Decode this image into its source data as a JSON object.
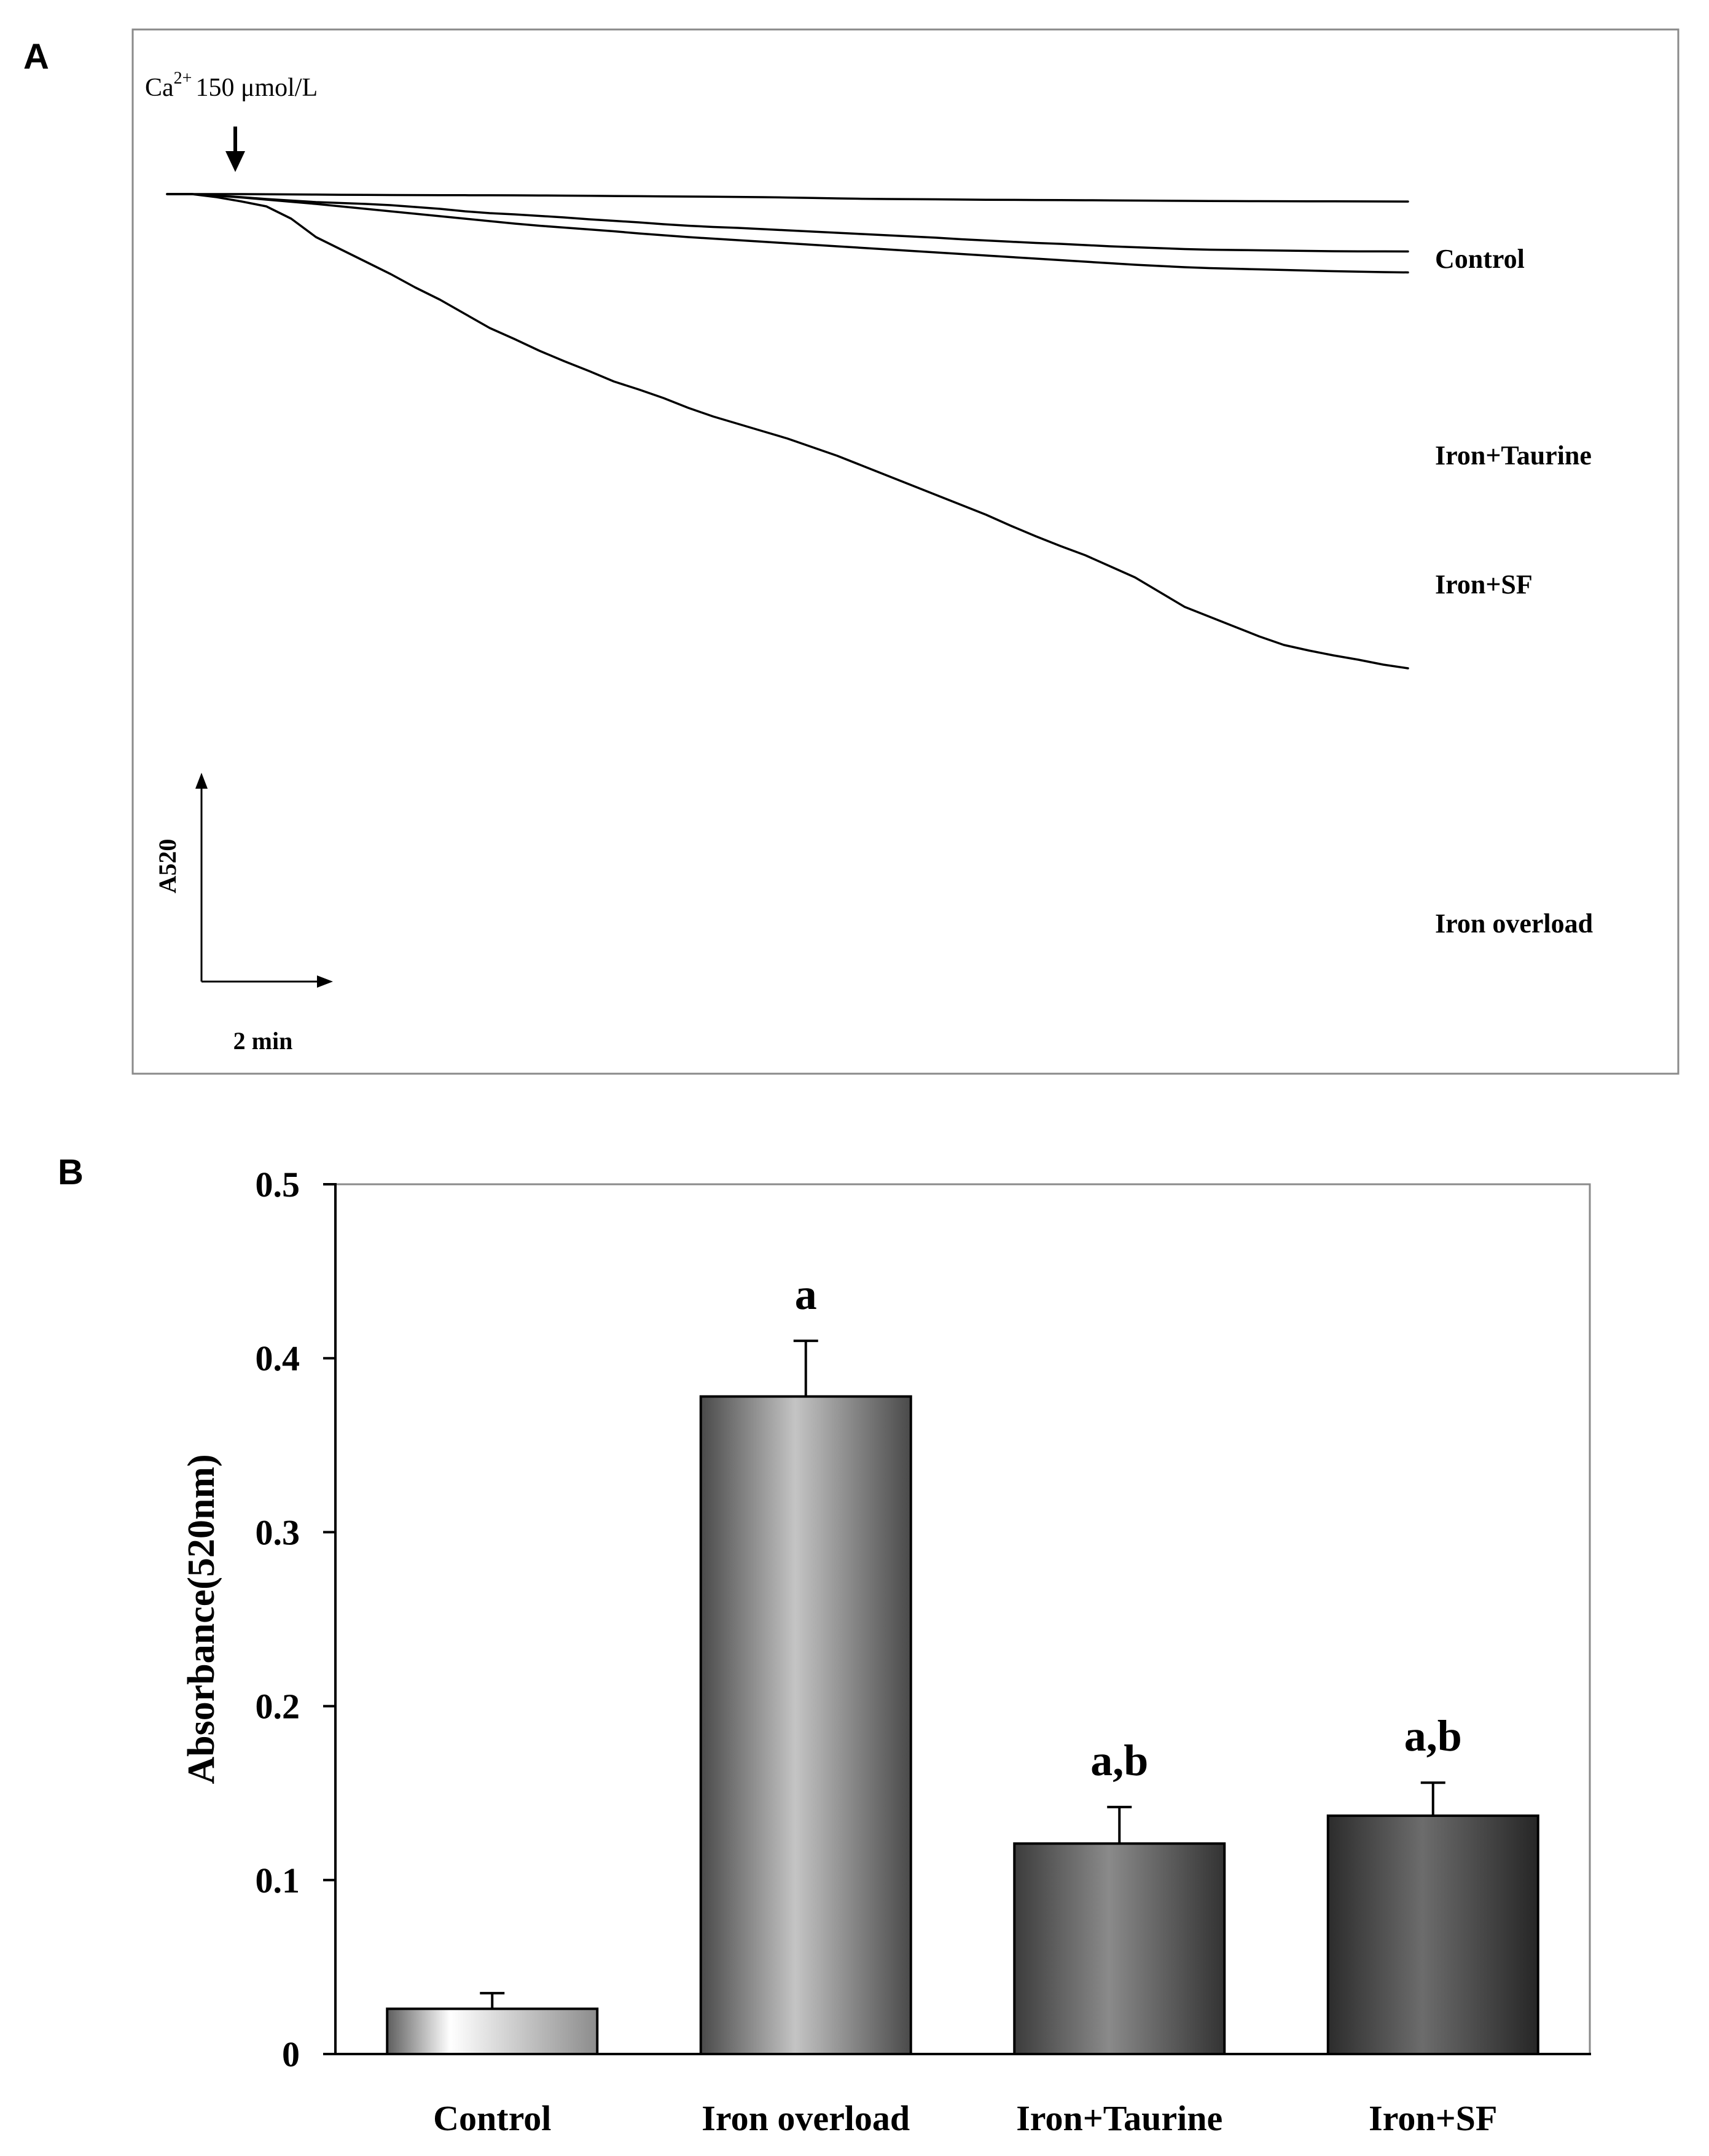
{
  "figure": {
    "panel_a_label": "A",
    "panel_b_label": "B"
  },
  "chart_data": [
    {
      "type": "line",
      "panel": "A",
      "annotation": {
        "ion": "Ca",
        "superscript": "2+",
        "concentration": "150 μmol/L"
      },
      "ylabel": "A520",
      "xlabel": "2 min",
      "x": [
        0,
        0.1,
        0.2,
        0.4,
        0.6,
        0.8,
        1.0,
        1.2,
        1.4,
        1.6,
        1.8,
        2.0,
        2.2,
        2.4,
        2.6,
        2.8,
        3.0,
        3.2,
        3.4,
        3.6,
        3.8,
        4.0,
        4.2,
        4.4,
        4.6,
        4.8,
        5.0,
        5.2,
        5.4,
        5.6,
        5.8,
        6.0,
        6.2,
        6.4,
        6.6,
        6.8,
        7.0,
        7.2,
        7.4,
        7.6,
        7.8,
        8.0,
        8.2,
        8.4,
        8.6,
        8.8,
        9.0,
        9.2,
        9.4,
        9.6,
        9.8,
        10.0
      ],
      "series": [
        {
          "name": "Control",
          "values": [
            0,
            0,
            0,
            0,
            0,
            -0.3,
            -0.5,
            -0.8,
            -1.1,
            -1.3,
            -1.5,
            -1.6,
            -1.7,
            -1.8,
            -1.9,
            -2.0,
            -2.2,
            -2.5,
            -2.8,
            -3.1,
            -3.4,
            -3.7,
            -4.0,
            -4.3,
            -4.6,
            -5.0,
            -5.6,
            -6.3,
            -7.0,
            -7.6,
            -8.0,
            -8.2,
            -8.5,
            -8.9,
            -9.2,
            -9.4,
            -9.6,
            -9.8,
            -10.0,
            -10.2,
            -10.5,
            -10.8,
            -11.0,
            -11.2,
            -11.4,
            -11.5,
            -11.6,
            -11.7,
            -11.8,
            -11.9,
            -12.0,
            -12.1
          ]
        },
        {
          "name": "Iron+Taurine",
          "values": [
            0,
            0,
            0,
            -2.5,
            -5,
            -8,
            -10.5,
            -13,
            -14.5,
            -16,
            -18,
            -21,
            -24,
            -28,
            -31,
            -33,
            -35.5,
            -38,
            -41,
            -43.5,
            -46,
            -49,
            -51.5,
            -53.5,
            -55,
            -57,
            -59,
            -61,
            -63,
            -65,
            -67,
            -69,
            -71,
            -73.5,
            -75.5,
            -77.5,
            -79.5,
            -81,
            -83,
            -85,
            -86.5,
            -88,
            -89.5,
            -90.5,
            -91,
            -91.5,
            -92,
            -92.5,
            -93,
            -93.2,
            -93.3,
            -93.4
          ]
        },
        {
          "name": "Iron+SF",
          "values": [
            0,
            0,
            0,
            -2.5,
            -5.5,
            -9,
            -12.5,
            -16,
            -20,
            -24,
            -28,
            -32,
            -36,
            -40,
            -44,
            -48,
            -51.5,
            -54.5,
            -57.5,
            -60.5,
            -64,
            -67,
            -70,
            -72.5,
            -75,
            -77.5,
            -80,
            -82.5,
            -85,
            -87.5,
            -90,
            -92.5,
            -95,
            -97.5,
            -100,
            -102.5,
            -105,
            -107.5,
            -110,
            -112.5,
            -115,
            -117,
            -119,
            -120.5,
            -121.5,
            -122.5,
            -123.5,
            -124.5,
            -125.5,
            -126.3,
            -127,
            -127.5
          ]
        },
        {
          "name": "Iron overload",
          "values": [
            0,
            0,
            0,
            -5,
            -12,
            -20,
            -40,
            -70,
            -90,
            -110,
            -130,
            -152,
            -172,
            -195,
            -218,
            -236,
            -255,
            -272,
            -288,
            -305,
            -318,
            -332,
            -348,
            -362,
            -374,
            -386,
            -398,
            -412,
            -426,
            -442,
            -458,
            -474,
            -490,
            -506,
            -522,
            -540,
            -557,
            -573,
            -588,
            -606,
            -624,
            -648,
            -672,
            -688,
            -704,
            -720,
            -734,
            -743,
            -751,
            -758,
            -766,
            -772
          ]
        }
      ]
    },
    {
      "type": "bar",
      "panel": "B",
      "categories": [
        "Control",
        "Iron overload",
        "Iron+Taurine",
        "Iron+SF"
      ],
      "values": [
        0.026,
        0.378,
        0.121,
        0.137
      ],
      "errors": [
        0.009,
        0.032,
        0.021,
        0.019
      ],
      "significance": [
        "",
        "a",
        "a,b",
        "a,b"
      ],
      "ylabel": "Absorbance(520nm)",
      "ylim": [
        0,
        0.5
      ],
      "yticks": [
        0,
        0.1,
        0.2,
        0.3,
        0.4,
        0.5
      ],
      "ytick_labels": [
        "0",
        "0.1",
        "0.2",
        "0.3",
        "0.4",
        "0.5"
      ]
    }
  ]
}
